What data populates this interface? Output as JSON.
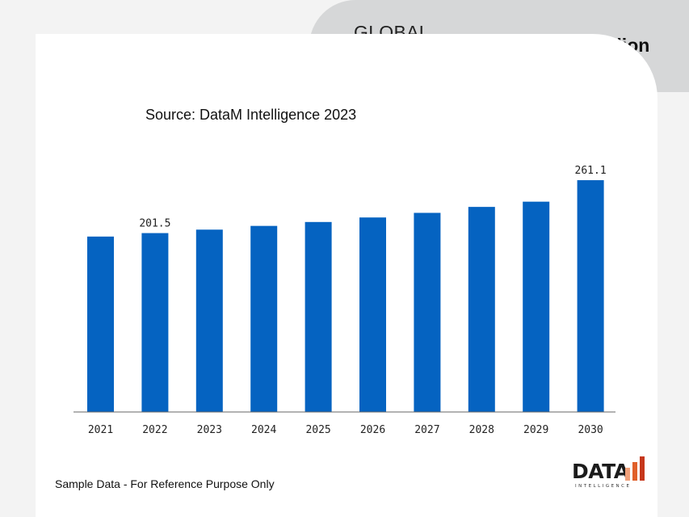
{
  "header": {
    "title": "GLOBAL MARKET",
    "unit": "In USD Million"
  },
  "source": "Source: DataM Intelligence 2023",
  "footnote": "Sample Data - For Reference Purpose Only",
  "logo": {
    "word": "DATA",
    "sub": "INTELLIGENCE",
    "colors": {
      "bar_light": "#f0a07a",
      "bar_mid": "#e0602a",
      "bar_dark": "#c6371b"
    }
  },
  "chart_data": {
    "type": "bar",
    "title": "",
    "xlabel": "",
    "ylabel": "",
    "categories": [
      "2021",
      "2022",
      "2023",
      "2024",
      "2025",
      "2026",
      "2027",
      "2028",
      "2029",
      "2030"
    ],
    "values": [
      197.6,
      201.5,
      205.4,
      209.6,
      214.0,
      219.1,
      224.3,
      231.0,
      236.9,
      261.1
    ],
    "data_labels": {
      "1": "201.5",
      "9": "261.1"
    },
    "ylim": [
      0,
      280
    ],
    "bar_color": "#0563c1",
    "grid": false,
    "legend": "none"
  }
}
